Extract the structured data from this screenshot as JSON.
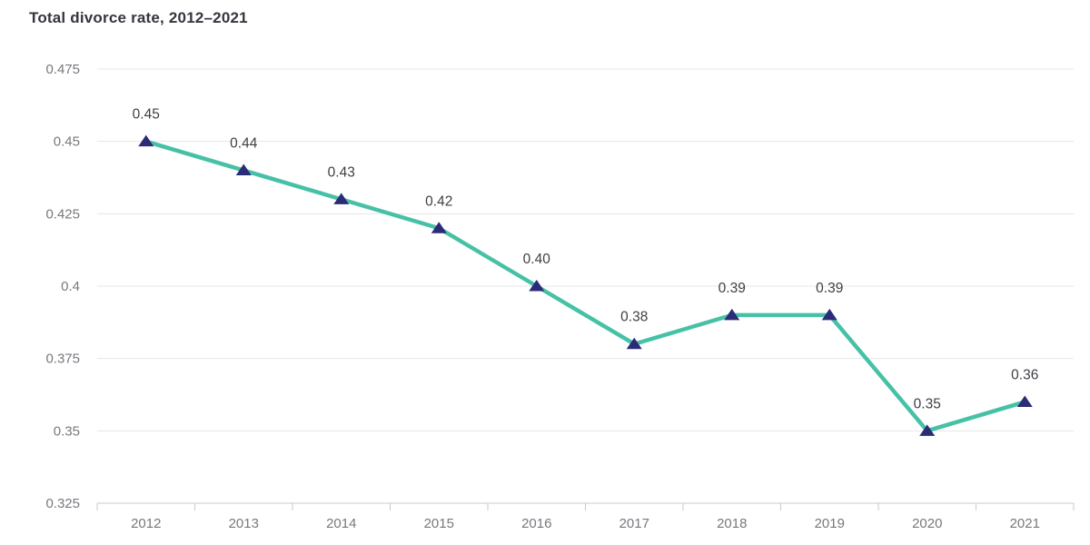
{
  "header": {
    "title": "Total divorce rate, 2012–2021"
  },
  "chart_data": {
    "type": "line",
    "title": "Total divorce rate, 2012–2021",
    "categories": [
      "2012",
      "2013",
      "2014",
      "2015",
      "2016",
      "2017",
      "2018",
      "2019",
      "2020",
      "2021"
    ],
    "series": [
      {
        "name": "Total divorce rate",
        "values": [
          0.45,
          0.44,
          0.43,
          0.42,
          0.4,
          0.38,
          0.39,
          0.39,
          0.35,
          0.36
        ],
        "point_labels": [
          "0.45",
          "0.44",
          "0.43",
          "0.42",
          "0.40",
          "0.38",
          "0.39",
          "0.39",
          "0.35",
          "0.36"
        ]
      }
    ],
    "xlabel": "",
    "ylabel": "",
    "ylim": [
      0.325,
      0.475
    ],
    "y_ticks": [
      {
        "value": 0.325,
        "label": "0.325"
      },
      {
        "value": 0.35,
        "label": "0.35"
      },
      {
        "value": 0.375,
        "label": "0.375"
      },
      {
        "value": 0.4,
        "label": "0.4"
      },
      {
        "value": 0.425,
        "label": "0.425"
      },
      {
        "value": 0.45,
        "label": "0.45"
      },
      {
        "value": 0.475,
        "label": "0.475"
      }
    ],
    "grid": true,
    "legend": "none",
    "marker_shape": "triangle-up",
    "colors": {
      "line": "#47c1a6",
      "marker": "#2b2b78",
      "grid_line": "#e7e7e9",
      "axis_line": "#c9c9d3",
      "tick_label": "#78787f",
      "data_label": "#3e3e45",
      "title": "#35353e",
      "background": "#ffffff"
    }
  }
}
